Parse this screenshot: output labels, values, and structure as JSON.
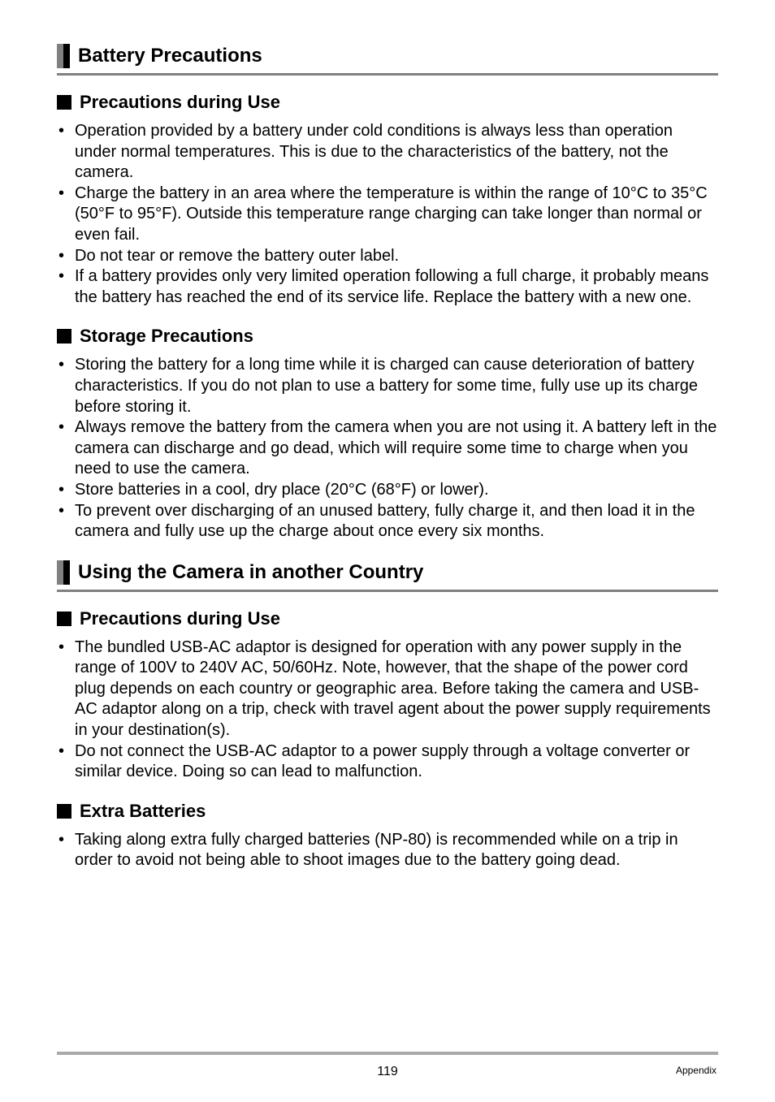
{
  "section1": {
    "title": "Battery Precautions",
    "sub1": {
      "title": "Precautions during Use",
      "bullets": [
        "Operation provided by a battery under cold conditions is always less than operation under normal temperatures. This is due to the characteristics of the battery, not the camera.",
        "Charge the battery in an area where the temperature is within the range of 10°C to 35°C (50°F to 95°F). Outside this temperature range charging can take longer than normal or even fail.",
        "Do not tear or remove the battery outer label.",
        "If a battery provides only very limited operation following a full charge, it probably means the battery has reached the end of its service life. Replace the battery with a new one."
      ]
    },
    "sub2": {
      "title": "Storage Precautions",
      "bullets": [
        "Storing the battery for a long time while it is charged can cause deterioration of battery characteristics. If you do not plan to use a battery for some time, fully use up its charge before storing it.",
        "Always remove the battery from the camera when you are not using it. A battery left in the camera can discharge and go dead, which will require some time to charge when you need to use the camera.",
        "Store batteries in a cool, dry place (20°C (68°F) or lower).",
        "To prevent over discharging of an unused battery, fully charge it, and then load it in the camera and fully use up the charge about once every six months."
      ]
    }
  },
  "section2": {
    "title": "Using the Camera in another Country",
    "sub1": {
      "title": "Precautions during Use",
      "bullets": [
        "The bundled USB-AC adaptor is designed for operation with any power supply in the range of 100V to 240V AC, 50/60Hz. Note, however, that the shape of the power cord plug depends on each country or geographic area. Before taking the camera and USB-AC adaptor along on a trip, check with travel agent about the power supply requirements in your destination(s).",
        "Do not connect the USB-AC adaptor to a power supply through a voltage converter or similar device. Doing so can lead to malfunction."
      ]
    },
    "sub2": {
      "title": "Extra Batteries",
      "bullets": [
        "Taking along extra fully charged batteries (NP-80) is recommended while on a trip in order to avoid not being able to shoot images due to the battery going dead."
      ]
    }
  },
  "footer": {
    "page": "119",
    "appendix": "Appendix"
  }
}
